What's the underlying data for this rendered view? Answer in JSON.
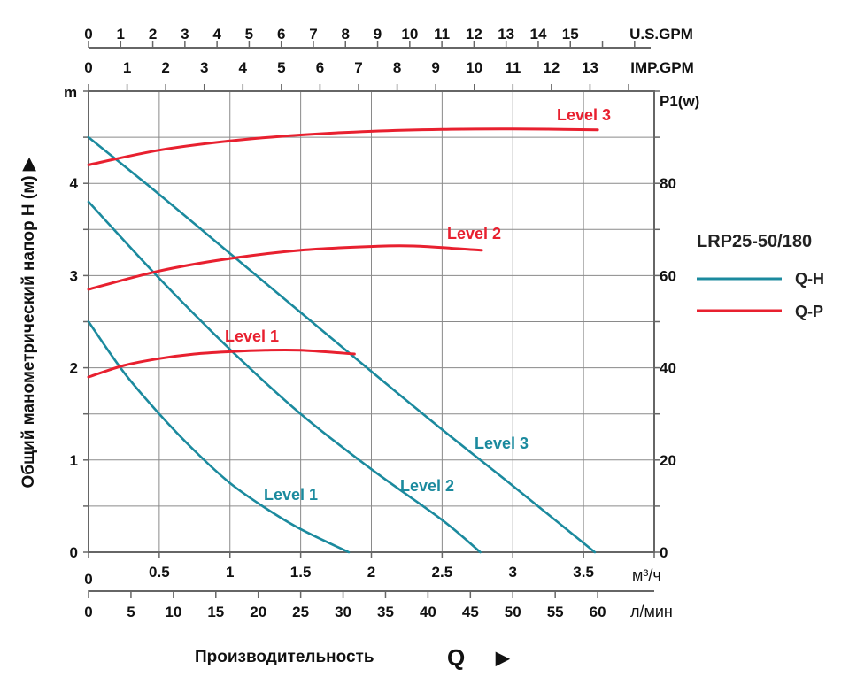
{
  "chart_data": {
    "type": "line",
    "model": "LRP25-50/180",
    "ylabel": "Общий манометрический напор H (м)",
    "ylabel_arrow": "▶",
    "ylabel_unit": "m",
    "y2label": "P1(w)",
    "xlabel": "Производительность",
    "xlabel_symbol": "Q",
    "xlabel_arrow": "▶",
    "x_unit": "м³/ч",
    "x_unit_lmin": "л/мин",
    "x_unit_usgpm": "U.S.GPM",
    "x_unit_impgpm": "IMP.GPM",
    "xlim": [
      0,
      4
    ],
    "ylim": [
      0,
      5
    ],
    "y2lim": [
      0,
      100
    ],
    "grid": true,
    "legend_position": "right",
    "x_ticks": [
      "0",
      "0.5",
      "1",
      "1.5",
      "2",
      "2.5",
      "3",
      "3.5"
    ],
    "y_ticks": [
      "0",
      "1",
      "2",
      "3",
      "4"
    ],
    "y2_ticks": [
      "0",
      "20",
      "40",
      "60",
      "80"
    ],
    "lmin_ticks": [
      "0",
      "5",
      "10",
      "15",
      "20",
      "25",
      "30",
      "35",
      "40",
      "45",
      "50",
      "55",
      "60"
    ],
    "usgpm_ticks": [
      "0",
      "1",
      "2",
      "3",
      "4",
      "5",
      "6",
      "7",
      "8",
      "9",
      "10",
      "11",
      "12",
      "13",
      "14",
      "15"
    ],
    "impgpm_ticks": [
      "0",
      "1",
      "2",
      "3",
      "4",
      "5",
      "6",
      "7",
      "8",
      "9",
      "10",
      "11",
      "12",
      "13"
    ],
    "colors": {
      "qh": "#1b8a9e",
      "qp": "#e8202f"
    },
    "legend": [
      {
        "name": "Q-H",
        "color": "#1b8a9e"
      },
      {
        "name": "Q-P",
        "color": "#e8202f"
      }
    ],
    "series": [
      {
        "name": "Level 1",
        "kind": "Q-H",
        "x": [
          0,
          0.25,
          0.5,
          0.75,
          1,
          1.25,
          1.5,
          1.84
        ],
        "y": [
          2.5,
          1.95,
          1.5,
          1.1,
          0.75,
          0.48,
          0.25,
          0
        ]
      },
      {
        "name": "Level 2",
        "kind": "Q-H",
        "x": [
          0,
          0.5,
          1,
          1.5,
          2,
          2.5,
          2.77
        ],
        "y": [
          3.8,
          2.97,
          2.2,
          1.5,
          0.9,
          0.35,
          0
        ]
      },
      {
        "name": "Level 3",
        "kind": "Q-H",
        "x": [
          0,
          0.5,
          1,
          1.5,
          2,
          2.5,
          3,
          3.58
        ],
        "y": [
          4.5,
          3.88,
          3.24,
          2.6,
          1.96,
          1.33,
          0.72,
          0
        ]
      },
      {
        "name": "Level 1",
        "kind": "Q-P",
        "x": [
          0,
          0.25,
          0.5,
          0.75,
          1,
          1.25,
          1.5,
          1.88
        ],
        "y": [
          38,
          40.5,
          42,
          43,
          43.5,
          43.8,
          43.8,
          43
        ]
      },
      {
        "name": "Level 2",
        "kind": "Q-P",
        "x": [
          0,
          0.5,
          1,
          1.5,
          2,
          2.3,
          2.78
        ],
        "y": [
          57,
          61,
          63.7,
          65.5,
          66.3,
          66.4,
          65.5
        ]
      },
      {
        "name": "Level 3",
        "kind": "Q-P",
        "x": [
          0,
          0.5,
          1,
          1.5,
          2,
          2.5,
          3,
          3.6
        ],
        "y": [
          84,
          87.2,
          89.2,
          90.5,
          91.3,
          91.7,
          91.8,
          91.6
        ]
      }
    ]
  }
}
